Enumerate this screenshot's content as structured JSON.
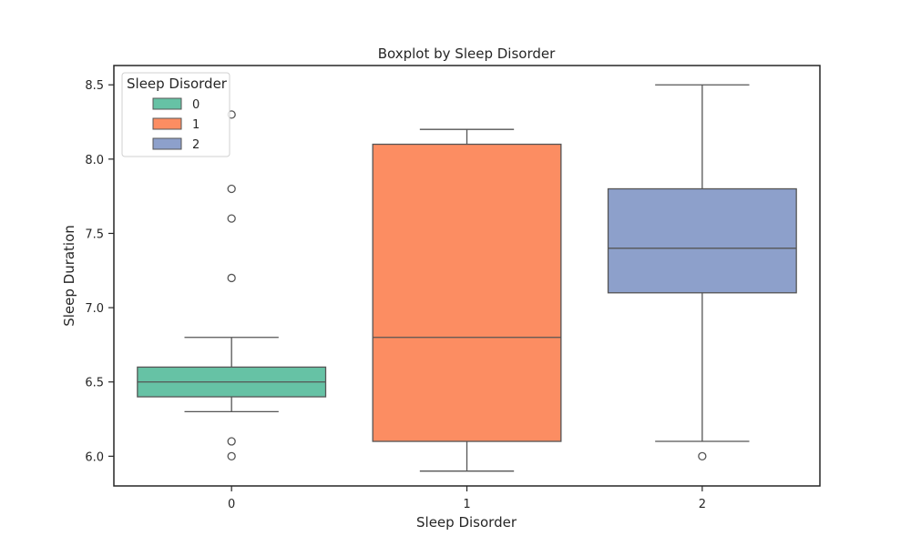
{
  "chart_data": {
    "type": "box",
    "title": "Boxplot by Sleep Disorder",
    "xlabel": "Sleep Disorder",
    "ylabel": "Sleep Duration",
    "categories": [
      "0",
      "1",
      "2"
    ],
    "ylim": [
      5.8,
      8.63
    ],
    "yticks": [
      6.0,
      6.5,
      7.0,
      7.5,
      8.0,
      8.5
    ],
    "ytick_labels": [
      "6.0",
      "6.5",
      "7.0",
      "7.5",
      "8.0",
      "8.5"
    ],
    "grid": false,
    "legend": {
      "title": "Sleep Disorder",
      "position": "top-left",
      "entries": [
        "0",
        "1",
        "2"
      ]
    },
    "colors": [
      "#66c2a5",
      "#fc8d62",
      "#8da0cb"
    ],
    "boxes": [
      {
        "category": "0",
        "whisker_low": 6.3,
        "q1": 6.4,
        "median": 6.5,
        "q3": 6.6,
        "whisker_high": 6.8,
        "outliers": [
          6.0,
          6.1,
          7.2,
          7.6,
          7.8,
          8.3
        ]
      },
      {
        "category": "1",
        "whisker_low": 5.9,
        "q1": 6.1,
        "median": 6.8,
        "q3": 8.1,
        "whisker_high": 8.2,
        "outliers": []
      },
      {
        "category": "2",
        "whisker_low": 6.1,
        "q1": 7.1,
        "median": 7.4,
        "q3": 7.8,
        "whisker_high": 8.5,
        "outliers": [
          6.0
        ]
      }
    ]
  }
}
